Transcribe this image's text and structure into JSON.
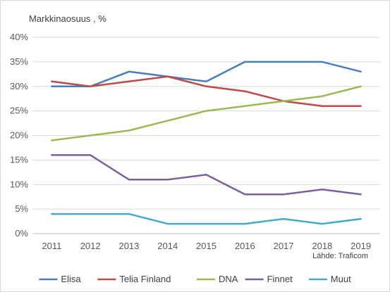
{
  "chart_data": {
    "type": "line",
    "title": "Markkinaosuus , %",
    "xlabel": "",
    "ylabel": "",
    "source": "Lähde: Traficom",
    "x": [
      "2011",
      "2012",
      "2013",
      "2014",
      "2015",
      "2016",
      "2017",
      "2018",
      "2019"
    ],
    "ylim": [
      0,
      40
    ],
    "yticks": [
      0,
      5,
      10,
      15,
      20,
      25,
      30,
      35,
      40
    ],
    "ytick_suffix": "%",
    "grid": true,
    "legend_position": "bottom",
    "series": [
      {
        "name": "Elisa",
        "color": "#4a7ebb",
        "values": [
          30,
          30,
          33,
          32,
          31,
          35,
          35,
          35,
          33
        ]
      },
      {
        "name": "Telia Finland",
        "color": "#be4b48",
        "values": [
          31,
          30,
          31,
          32,
          30,
          29,
          27,
          26,
          26
        ]
      },
      {
        "name": "DNA",
        "color": "#98b954",
        "values": [
          19,
          20,
          21,
          23,
          25,
          26,
          27,
          28,
          30
        ]
      },
      {
        "name": "Finnet",
        "color": "#7d5fa0",
        "values": [
          16,
          16,
          11,
          11,
          12,
          8,
          8,
          9,
          8
        ]
      },
      {
        "name": "Muut",
        "color": "#46aac5",
        "values": [
          4,
          4,
          4,
          2,
          2,
          2,
          3,
          2,
          3
        ]
      }
    ]
  }
}
